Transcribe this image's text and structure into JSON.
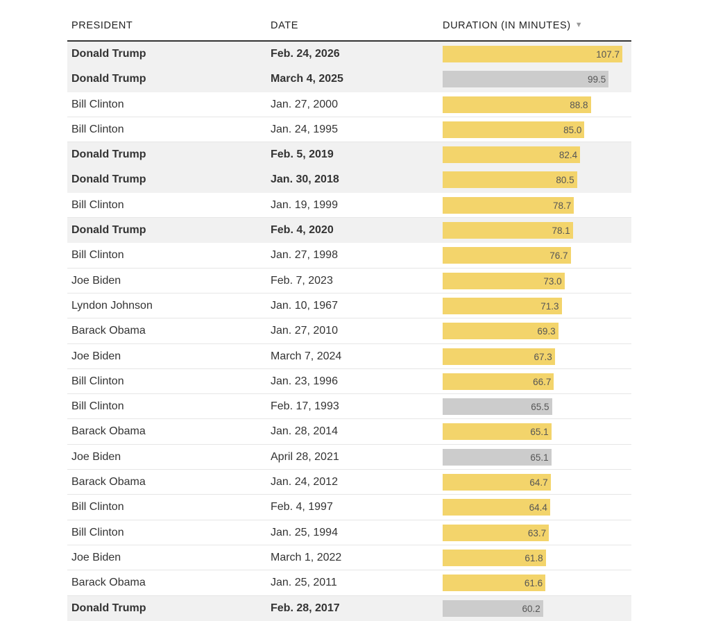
{
  "header": {
    "president": "PRESIDENT",
    "date": "DATE",
    "duration": "DURATION (IN MINUTES)",
    "sort_icon": "▼"
  },
  "colors": {
    "yellow": "#f3d46b",
    "gray": "#cccccc",
    "highlight_row": "#f1f1f1"
  },
  "chart_data": {
    "type": "table",
    "columns": [
      "PRESIDENT",
      "DATE",
      "DURATION (IN MINUTES)"
    ],
    "max_value": 107.7,
    "rows": [
      {
        "president": "Donald Trump",
        "date": "Feb. 24, 2026",
        "value": 107.7,
        "label": "107.7",
        "highlight": true,
        "color": "yellow"
      },
      {
        "president": "Donald Trump",
        "date": "March 4, 2025",
        "value": 99.5,
        "label": "99.5",
        "highlight": true,
        "color": "gray"
      },
      {
        "president": "Bill Clinton",
        "date": "Jan. 27, 2000",
        "value": 88.8,
        "label": "88.8",
        "highlight": false,
        "color": "yellow"
      },
      {
        "president": "Bill Clinton",
        "date": "Jan. 24, 1995",
        "value": 85.0,
        "label": "85.0",
        "highlight": false,
        "color": "yellow"
      },
      {
        "president": "Donald Trump",
        "date": "Feb. 5, 2019",
        "value": 82.4,
        "label": "82.4",
        "highlight": true,
        "color": "yellow"
      },
      {
        "president": "Donald Trump",
        "date": "Jan. 30, 2018",
        "value": 80.5,
        "label": "80.5",
        "highlight": true,
        "color": "yellow"
      },
      {
        "president": "Bill Clinton",
        "date": "Jan. 19, 1999",
        "value": 78.7,
        "label": "78.7",
        "highlight": false,
        "color": "yellow"
      },
      {
        "president": "Donald Trump",
        "date": "Feb. 4, 2020",
        "value": 78.1,
        "label": "78.1",
        "highlight": true,
        "color": "yellow"
      },
      {
        "president": "Bill Clinton",
        "date": "Jan. 27, 1998",
        "value": 76.7,
        "label": "76.7",
        "highlight": false,
        "color": "yellow"
      },
      {
        "president": "Joe Biden",
        "date": "Feb. 7, 2023",
        "value": 73.0,
        "label": "73.0",
        "highlight": false,
        "color": "yellow"
      },
      {
        "president": "Lyndon Johnson",
        "date": "Jan. 10, 1967",
        "value": 71.3,
        "label": "71.3",
        "highlight": false,
        "color": "yellow"
      },
      {
        "president": "Barack Obama",
        "date": "Jan. 27, 2010",
        "value": 69.3,
        "label": "69.3",
        "highlight": false,
        "color": "yellow"
      },
      {
        "president": "Joe Biden",
        "date": "March 7, 2024",
        "value": 67.3,
        "label": "67.3",
        "highlight": false,
        "color": "yellow"
      },
      {
        "president": "Bill Clinton",
        "date": "Jan. 23, 1996",
        "value": 66.7,
        "label": "66.7",
        "highlight": false,
        "color": "yellow"
      },
      {
        "president": "Bill Clinton",
        "date": "Feb. 17, 1993",
        "value": 65.5,
        "label": "65.5",
        "highlight": false,
        "color": "gray"
      },
      {
        "president": "Barack Obama",
        "date": "Jan. 28, 2014",
        "value": 65.1,
        "label": "65.1",
        "highlight": false,
        "color": "yellow"
      },
      {
        "president": "Joe Biden",
        "date": "April 28, 2021",
        "value": 65.1,
        "label": "65.1",
        "highlight": false,
        "color": "gray"
      },
      {
        "president": "Barack Obama",
        "date": "Jan. 24, 2012",
        "value": 64.7,
        "label": "64.7",
        "highlight": false,
        "color": "yellow"
      },
      {
        "president": "Bill Clinton",
        "date": "Feb. 4, 1997",
        "value": 64.4,
        "label": "64.4",
        "highlight": false,
        "color": "yellow"
      },
      {
        "president": "Bill Clinton",
        "date": "Jan. 25, 1994",
        "value": 63.7,
        "label": "63.7",
        "highlight": false,
        "color": "yellow"
      },
      {
        "president": "Joe Biden",
        "date": "March 1, 2022",
        "value": 61.8,
        "label": "61.8",
        "highlight": false,
        "color": "yellow"
      },
      {
        "president": "Barack Obama",
        "date": "Jan. 25, 2011",
        "value": 61.6,
        "label": "61.6",
        "highlight": false,
        "color": "yellow"
      },
      {
        "president": "Donald Trump",
        "date": "Feb. 28, 2017",
        "value": 60.2,
        "label": "60.2",
        "highlight": true,
        "color": "gray"
      }
    ]
  }
}
